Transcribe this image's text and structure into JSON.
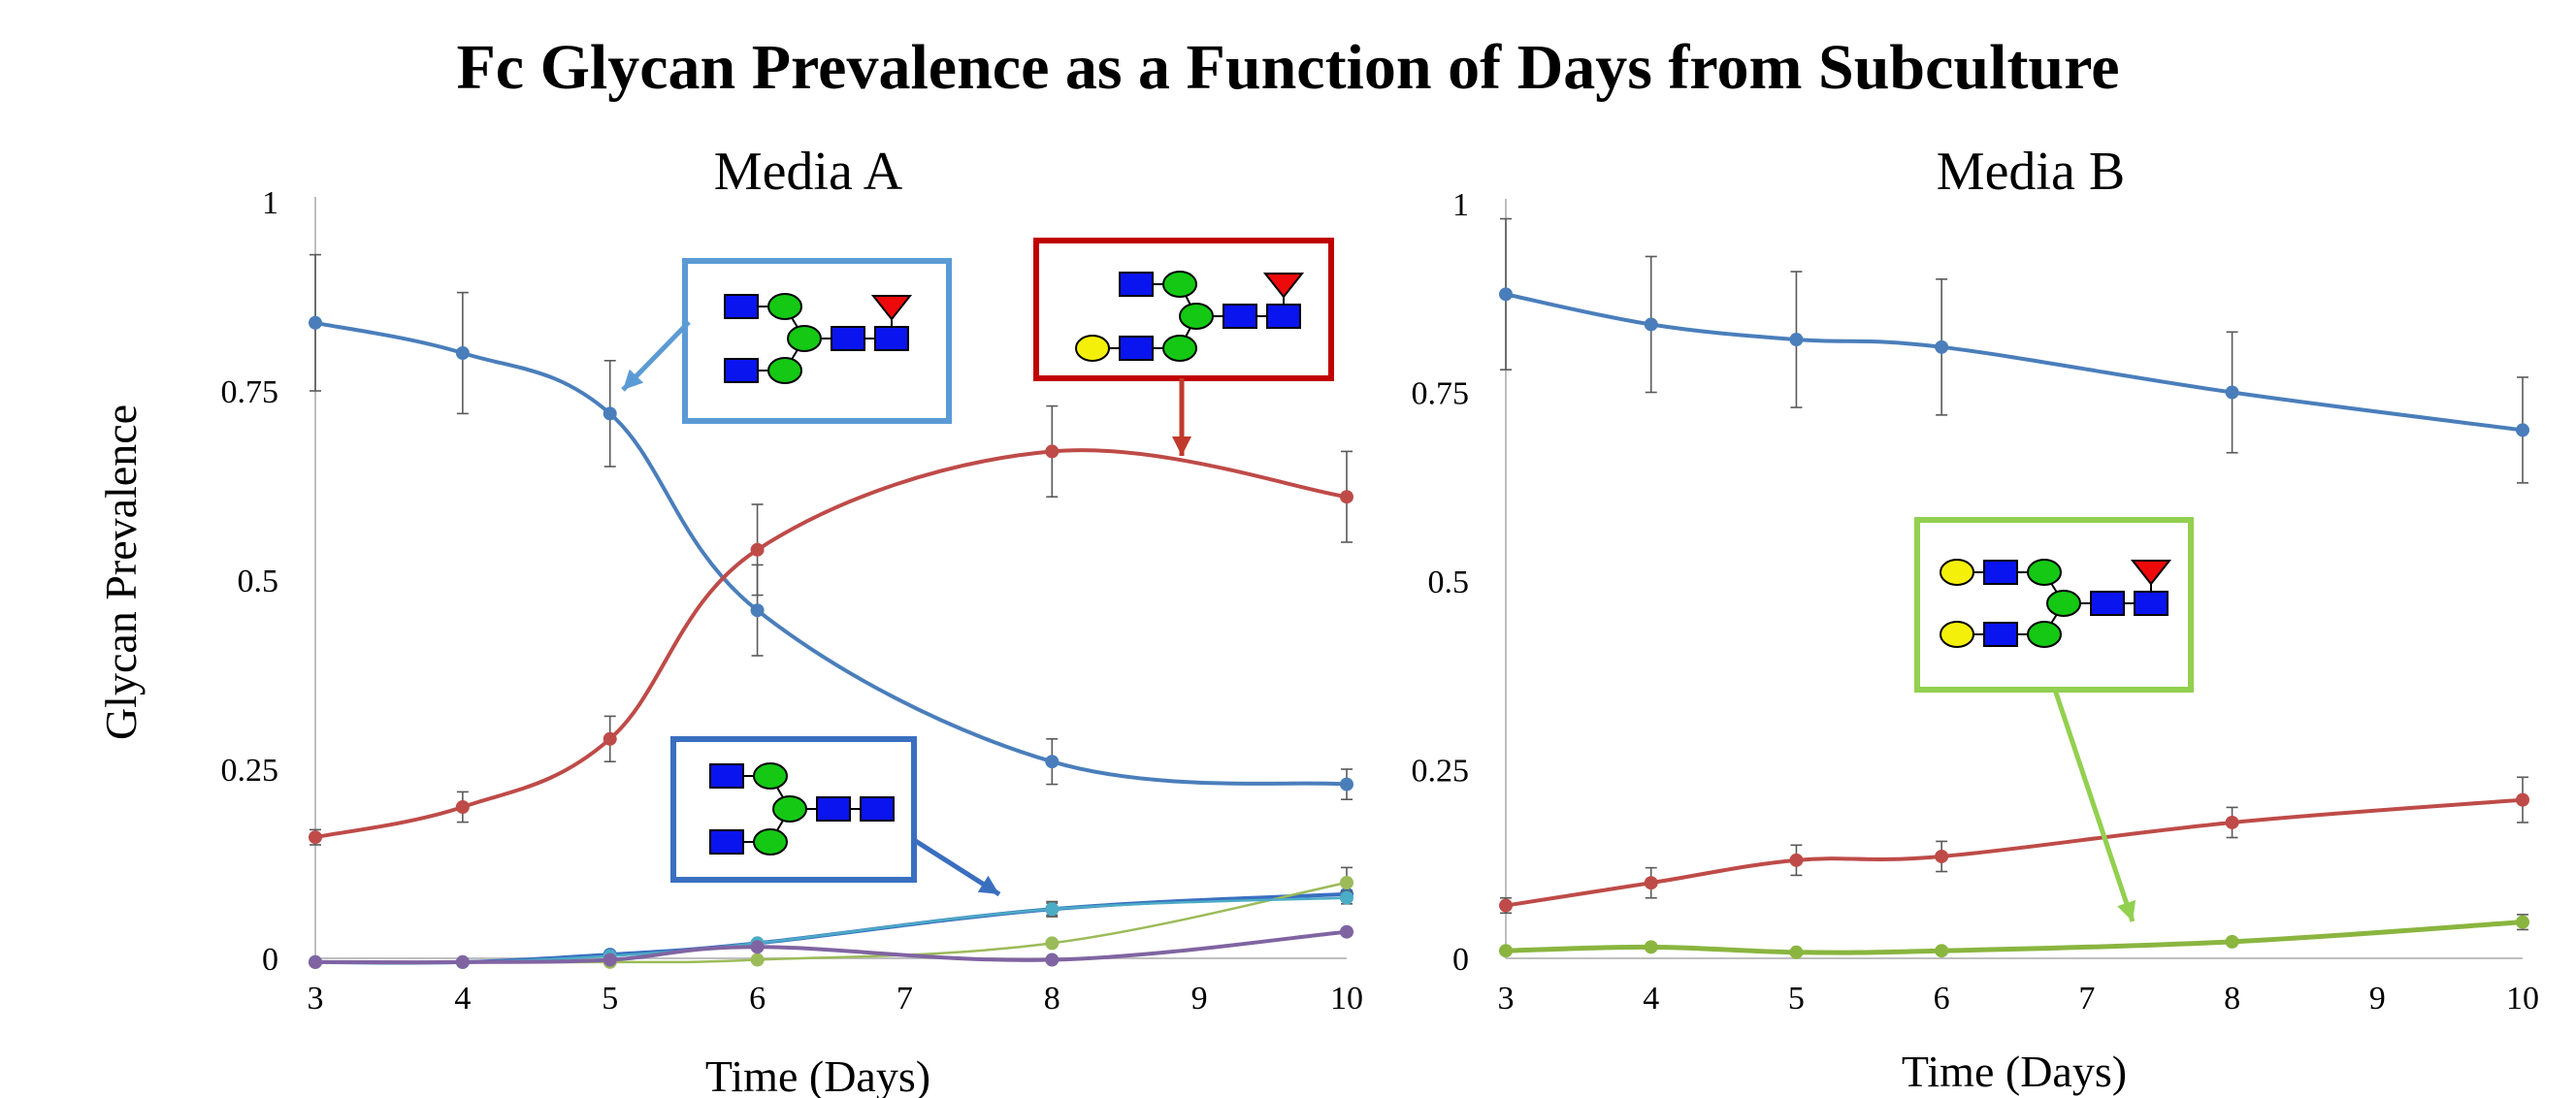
{
  "title": "Fc Glycan Prevalence as a Function of Days from Subculture",
  "ylabel": "Glycan Prevalence",
  "chart_data": [
    {
      "type": "line",
      "title": "Media A",
      "xlabel": "Time (Days)",
      "xlim": [
        3,
        10
      ],
      "ylim": [
        0,
        1
      ],
      "xticks": [
        "3",
        "4",
        "5",
        "6",
        "7",
        "8",
        "9",
        "10"
      ],
      "yticks": [
        "0",
        "0.25",
        "0.5",
        "0.75",
        "1"
      ],
      "series": [
        {
          "color": "#4a7ebb",
          "width": 4,
          "x": [
            3,
            4,
            5,
            6,
            8,
            10
          ],
          "y": [
            0.84,
            0.8,
            0.72,
            0.46,
            0.26,
            0.23
          ],
          "err": [
            0.09,
            0.08,
            0.07,
            0.06,
            0.03,
            0.02
          ]
        },
        {
          "color": "#be4b48",
          "width": 4,
          "x": [
            3,
            4,
            5,
            6,
            8,
            10
          ],
          "y": [
            0.16,
            0.2,
            0.29,
            0.54,
            0.67,
            0.61
          ],
          "err": [
            0.01,
            0.02,
            0.03,
            0.06,
            0.06,
            0.06
          ]
        },
        {
          "color": "#3a6fc0",
          "width": 4,
          "x": [
            3,
            4,
            5,
            6,
            8,
            10
          ],
          "y": [
            -0.005,
            -0.005,
            0.005,
            0.02,
            0.065,
            0.085
          ],
          "err": [
            0,
            0,
            0,
            0,
            0.01,
            0.005
          ]
        },
        {
          "color": "#9bbb59",
          "width": 2.5,
          "x": [
            3,
            4,
            5,
            6,
            8,
            10
          ],
          "y": [
            -0.005,
            -0.005,
            -0.005,
            -0.002,
            0.02,
            0.1
          ],
          "err": [
            0,
            0,
            0,
            0,
            0,
            0.02
          ]
        },
        {
          "color": "#4bacc6",
          "width": 2.5,
          "x": [
            3,
            4,
            5,
            6,
            8,
            10
          ],
          "y": [
            -0.005,
            -0.005,
            0.003,
            0.02,
            0.065,
            0.08
          ],
          "err": [
            0,
            0,
            0,
            0,
            0.008,
            0.008
          ]
        },
        {
          "color": "#8064a2",
          "width": 4,
          "x": [
            3,
            4,
            5,
            6,
            8,
            10
          ],
          "y": [
            -0.005,
            -0.005,
            -0.002,
            0.015,
            -0.002,
            0.035
          ],
          "err": [
            0,
            0,
            0,
            0,
            0,
            0
          ]
        }
      ]
    },
    {
      "type": "line",
      "title": "Media B",
      "xlabel": "Time (Days)",
      "xlim": [
        3,
        10
      ],
      "ylim": [
        0,
        1
      ],
      "xticks": [
        "3",
        "4",
        "5",
        "6",
        "7",
        "8",
        "9",
        "10"
      ],
      "yticks": [
        "0",
        "0.25",
        "0.5",
        "0.75",
        "1"
      ],
      "series": [
        {
          "color": "#4a7ebb",
          "width": 4,
          "x": [
            3,
            4,
            5,
            6,
            8,
            10
          ],
          "y": [
            0.88,
            0.84,
            0.82,
            0.81,
            0.75,
            0.7
          ],
          "err": [
            0.1,
            0.09,
            0.09,
            0.09,
            0.08,
            0.07
          ]
        },
        {
          "color": "#be4b48",
          "width": 4,
          "x": [
            3,
            4,
            5,
            6,
            8,
            10
          ],
          "y": [
            0.07,
            0.1,
            0.13,
            0.135,
            0.18,
            0.21
          ],
          "err": [
            0.01,
            0.02,
            0.02,
            0.02,
            0.02,
            0.03
          ]
        },
        {
          "color": "#8ab53f",
          "width": 5,
          "x": [
            3,
            4,
            5,
            6,
            8,
            10
          ],
          "y": [
            0.01,
            0.015,
            0.008,
            0.01,
            0.022,
            0.048
          ],
          "err": [
            0,
            0,
            0,
            0,
            0,
            0.01
          ]
        }
      ]
    }
  ]
}
